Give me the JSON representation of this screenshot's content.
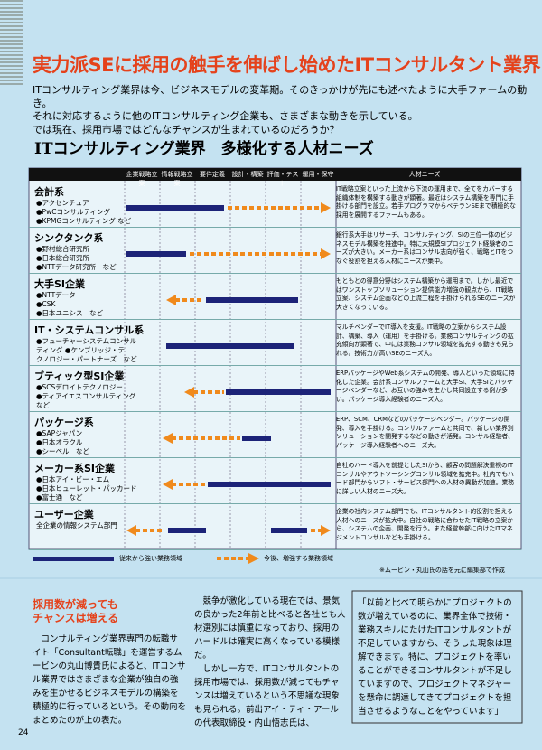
{
  "header": {
    "title": "実力派SEに採用の触手を伸ばし始めたITコンサルタント業界",
    "intro": [
      "ITコンサルティング業界は今、ビジネスモデルの変革期。そのきっかけが先にも述べたように大手ファームの動き。",
      "それに対応するように他のITコンサルティング企業も、さまざまな動きを示している。",
      "では現在、採用市場ではどんなチャンスが生まれているのだろうか？"
    ]
  },
  "table": {
    "title": "ITコンサルティング業界　多様化する人材ニーズ",
    "columns": [
      "企業戦略立案",
      "情報戦略立案",
      "要件定義",
      "設計・構築",
      "評価・テスト",
      "運用・保守",
      "人材ニーズ"
    ],
    "rows": [
      {
        "name": "会計系",
        "companies": [
          "●アクセンチュア",
          "●PwCコンサルティング",
          "●KPMGコンサルティング など"
        ],
        "needs": "IT戦略立案といった上流から下流の運用まで、全てをカバーする組織体制を構築する動きが顕著。最近はシステム構築を専門に手掛ける部門を設立。若手プログラマからベテランSEまで積極的な採用を展開するファームもある。"
      },
      {
        "name": "シンクタンク系",
        "companies": [
          "●野村総合研究所",
          "●日本総合研究所",
          "●NTTデータ研究所　など"
        ],
        "needs": "銀行系大手はリサーチ、コンサルティング、SIの三位一体のビジネスモデル構築を推進中。特に大規模SIプロジェクト経験者のニーズが大きい。メーカー系はコンサル志向が強く、戦略とITをつなぐ役割を担える人材にニーズが集中。"
      },
      {
        "name": "大手SI企業",
        "companies": [
          "●NTTデータ",
          "●CSK",
          "●日本ユニシス　など"
        ],
        "needs": "もともとの得意分野はシステム構築から運用まで。しかし最近ではワンストップソリューション提供能力増強の観点から、IT戦略立案、システム企画などの上流工程を手掛けられるSEのニーズが大きくなっている。"
      },
      {
        "name": "IT・システムコンサル系",
        "companies": [
          "●フューチャーシステムコンサル",
          "ティング ●ケンブリッジ・テ",
          "クノロジー・パートナーズ　など"
        ],
        "needs": "マルチベンダーでIT導入を支援。IT戦略の立案からシステム設計、構築、導入（運用）を手掛ける。業務コンサルティングの拡充傾向が顕著で、中には業務コンサル領域を拡充する動きも見られる。技術力が高いSEのニーズ大。"
      },
      {
        "name": "ブティック型SI企業",
        "companies": [
          "●SCSデロイトテクノロジー",
          "●ティアイエスコンサルティング",
          "など"
        ],
        "needs": "ERPパッケージやWeb系システムの開発、導入といった領域に特化した企業。会計系コンサルファームと大手SI、大手SIとパッケージベンダーなど、お互いの強みを生かし共同設立する例が多い。パッケージ導入経験者のニーズ大。"
      },
      {
        "name": "パッケージ系",
        "companies": [
          "●SAPジャパン",
          "●日本オラクル",
          "●シーベル　など"
        ],
        "needs": "ERP、SCM、CRMなどのパッケージベンダー。パッケージの開発、導入を手掛ける。コンサルファームと共同で、新しい業界別ソリューションを開発するなどの動きが活発。コンサル経験者、パッケージ導入経験者へのニーズ大。"
      },
      {
        "name": "メーカー系SI企業",
        "companies": [
          "●日本アイ・ビー・エム",
          "●日本ヒューレット・パッカード",
          "●富士通　など"
        ],
        "needs": "自社のハード導入を前提としたSIから、顧客の問題解決重視のITコンサルやアウトソーシングコンサル領域を拡充中。社内でもハード部門からソフト・サービス部門への人材の異動が加速。業務に詳しい人材のニーズ大。"
      },
      {
        "name": "ユーザー企業",
        "companies": [
          "全企業の情報システム部門"
        ],
        "needs": "企業の社内システム部門でも、ITコンサルタント的役割を担える人材へのニーズが拡大中。自社の戦略に合わせたIT戦略の立案から、システムの企画、開発を行う。また経営幹部に向けたITマネジメントコンサルなども手掛ける。"
      }
    ],
    "legend": {
      "solid": "従来から強い業務領域",
      "dashed": "今後、増強する業務領域"
    },
    "note": "※ムービン・丸山氏の話を元に編集部で作成"
  },
  "article": {
    "heading": [
      "採用数が減っても",
      "チャンスは増える"
    ],
    "left": "コンサルティング業界専門の転職サイト「Consultant転職」を運営するムービンの丸山博貴氏によると、ITコンサル業界ではさまざまな企業が独自の強みを生かせるビジネスモデルの構築を積極的に行っているという。その動向をまとめたのが上の表だ。",
    "middle": [
      "競争が激化している現在では、景気の良かった2年前と比べると各社とも人材選別には慎重になっており、採用のハードルは確実に高くなっている模様だ。",
      "しかし一方で、ITコンサルタントの採用市場では、採用数が減ってもチャンスは増えているという不思議な現象も見られる。前出アイ・ティ・アールの代表取締役・内山悟志氏は、"
    ],
    "quote": "「以前と比べて明らかにプロジェクトの数が増えているのに、業界全体で技術・業務スキルにたけたITコンサルタントが不足していますから、そうした現象は理解できます。特に、プロジェクトを率いることができるコンサルタントが不足していますので、プロジェクトマネジャーを懸命に調達してきてプロジェクトを担当させるようなことをやっています」"
  },
  "page_number": "24"
}
